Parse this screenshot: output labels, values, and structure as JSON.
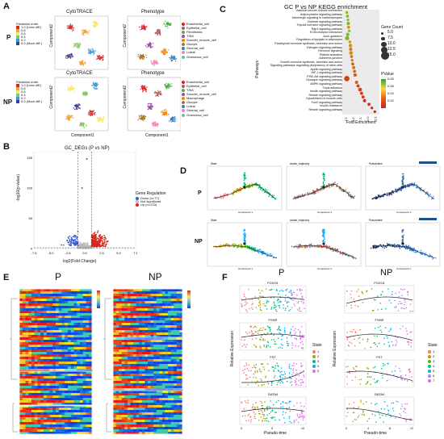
{
  "panels": {
    "A": {
      "letter": "A",
      "row_labels": [
        "P",
        "NP"
      ],
      "plots": [
        {
          "title": "CytoTRACE",
          "xlabel": "",
          "ylabel": "Component2"
        },
        {
          "title": "Phenotype",
          "xlabel": "",
          "ylabel": "Component2"
        },
        {
          "title": "CytoTRACE",
          "xlabel": "Component1",
          "ylabel": "Component2"
        },
        {
          "title": "Phenotype",
          "xlabel": "Component1",
          "ylabel": "Component2"
        }
      ],
      "cyto_legend_title": "Predicted order",
      "cyto_legend_items": [
        "1.0 (Less diff.)",
        "0.8",
        "0.6",
        "0.4",
        "0.2",
        "0.0 (More diff.)"
      ],
      "pheno_legend_items": [
        "Endothelial_cell",
        "Epithelial_cell",
        "Fibroblasts",
        "T/NK",
        "Smooth_muscle_cell",
        "Glocyte",
        "Stromal_cell",
        "Luteal",
        "Granulosa_cell"
      ],
      "pheno_legend_items_np": [
        "Endothelial_cell",
        "Epithelial_cell",
        "T/NK",
        "Smooth_muscle_cell",
        "Macrophage",
        "Glocyte",
        "Luteal",
        "Stromal_cell",
        "Granulosa_cell"
      ]
    },
    "B": {
      "letter": "B",
      "title": "GC_DEGs (P vs NP)",
      "xlabel": "log2(Fold Change)",
      "ylabel": "-log10(p-value)",
      "legend_title": "Gene Regulation",
      "legend_items": [
        "Down (n=77)",
        "Not significant",
        "Up (n=233)"
      ],
      "x_ticks": [
        "-7.5",
        "-5.0",
        "-2.5",
        "0.0",
        "2.5",
        "5.0",
        "7.5"
      ],
      "y_ticks": [
        "150",
        "100",
        "50",
        "0"
      ]
    },
    "C": {
      "letter": "C",
      "title": "GC P vs NP KEGG enrichment",
      "ylabel": "Pathways",
      "xlabel": "Fold Enrichment",
      "pathways": [
        "Vascular smooth muscle contraction",
        "Adipocytokine signaling pathway",
        "Adrenergic signaling in cardiomyocytes",
        "Oxytocin signaling pathway",
        "Thyroid hormone signaling pathway",
        "Rap1 signaling pathway",
        "ECM-receptor interaction",
        "Axon guidance",
        "Regulation of lipolysis in adipocytes",
        "Parathyroid hormone synthesis, secretion and action",
        "Estrogen signaling pathway",
        "Hormone signaling",
        "Platelet activation",
        "Adherens junction",
        "Growth hormone synthesis, secretion and action",
        "Signaling pathways regulating pluripotency of stem cells",
        "Apelin signaling pathway",
        "HIF-1 signaling pathway",
        "PI3K-Akt signaling pathway",
        "Glucagon signaling pathway",
        "AMPK signaling pathway",
        "Focal adhesion",
        "Insulin signaling pathway",
        "Relaxin signaling pathway",
        "Cytoskeleton in muscle cells",
        "FoxO signaling pathway",
        "Insulin resistance",
        "Relaxin signaling pathway"
      ],
      "x_ticks": [
        "2.5",
        "5.0",
        "7.5",
        "10.0",
        "12.5"
      ],
      "gene_count_title": "Gene Count",
      "gene_count_items": [
        "5.0",
        "7.5",
        "10.0",
        "12.5",
        "15.0"
      ],
      "pvalue_title": "PValue",
      "pvalue_items": [
        "0.08",
        "0.06",
        "0.04",
        "0.02"
      ],
      "points": [
        {
          "x": 3.0,
          "count": 5,
          "p": 0.07
        },
        {
          "x": 3.2,
          "count": 6,
          "p": 0.06
        },
        {
          "x": 3.4,
          "count": 5,
          "p": 0.08
        },
        {
          "x": 3.5,
          "count": 7,
          "p": 0.06
        },
        {
          "x": 3.6,
          "count": 6,
          "p": 0.05
        },
        {
          "x": 3.8,
          "count": 5,
          "p": 0.08
        },
        {
          "x": 3.3,
          "count": 8,
          "p": 0.07
        },
        {
          "x": 3.1,
          "count": 10,
          "p": 0.06
        },
        {
          "x": 4.0,
          "count": 5,
          "p": 0.05
        },
        {
          "x": 4.2,
          "count": 8,
          "p": 0.05
        },
        {
          "x": 4.3,
          "count": 7,
          "p": 0.04
        },
        {
          "x": 4.4,
          "count": 9,
          "p": 0.05
        },
        {
          "x": 4.6,
          "count": 6,
          "p": 0.04
        },
        {
          "x": 4.8,
          "count": 5,
          "p": 0.04
        },
        {
          "x": 5.0,
          "count": 6,
          "p": 0.03
        },
        {
          "x": 5.3,
          "count": 7,
          "p": 0.04
        },
        {
          "x": 5.6,
          "count": 6,
          "p": 0.03
        },
        {
          "x": 5.8,
          "count": 8,
          "p": 0.03
        },
        {
          "x": 3.0,
          "count": 15,
          "p": 0.02
        },
        {
          "x": 6.3,
          "count": 7,
          "p": 0.03
        },
        {
          "x": 6.8,
          "count": 7,
          "p": 0.02
        },
        {
          "x": 7.5,
          "count": 9,
          "p": 0.02
        },
        {
          "x": 8.0,
          "count": 7,
          "p": 0.02
        },
        {
          "x": 8.5,
          "count": 7,
          "p": 0.02
        },
        {
          "x": 9.0,
          "count": 7,
          "p": 0.01
        },
        {
          "x": 10.5,
          "count": 6,
          "p": 0.01
        },
        {
          "x": 11.5,
          "count": 5,
          "p": 0.01
        },
        {
          "x": 12.5,
          "count": 5,
          "p": 0.01
        }
      ]
    },
    "D": {
      "letter": "D",
      "row_labels": [
        "P",
        "NP"
      ],
      "subtitles": [
        "State",
        "cluster_trajectory",
        "Pseudotime"
      ],
      "xlabel": "Component 1",
      "ylabel": "Component 2"
    },
    "E": {
      "letter": "E",
      "groups": [
        "P",
        "NP"
      ]
    },
    "F": {
      "letter": "F",
      "groups": [
        "P",
        "NP"
      ],
      "genes": [
        "FOXO1",
        "FSHR",
        "FST",
        "GATA4"
      ],
      "ylabel": "Relative Expression",
      "xlabel": "Pseudo-time",
      "state_title": "State",
      "state_items_p": [
        "1",
        "2",
        "3",
        "4",
        "5"
      ],
      "state_items_np": [
        "1",
        "2",
        "3",
        "4",
        "5",
        "6",
        "7"
      ],
      "x_ticks_p": [
        "0",
        "5",
        "10"
      ],
      "x_ticks_np": [
        "0",
        "4",
        "8",
        "12"
      ]
    }
  },
  "colors": {
    "blue": "#3a5fcd",
    "red": "#d7261e",
    "grey": "#bbbbbb",
    "purple": "#b07cf0",
    "teal": "#3bbfad",
    "orange": "#f08c3c"
  }
}
